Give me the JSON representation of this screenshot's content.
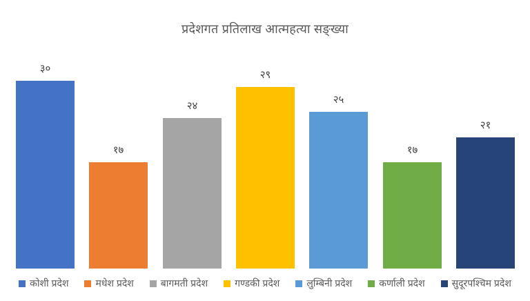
{
  "chart_data": {
    "type": "bar",
    "title": "प्रदेशगत प्रतिलाख आत्महत्या सङ्ख्या",
    "categories": [
      "कोशी प्रदेश",
      "मधेश प्रदेश",
      "बागमती प्रदेश",
      "गण्डकी प्रदेश",
      "लुम्बिनी प्रदेश",
      "कर्णाली प्रदेश",
      "सुदूरपश्चिम प्रदेश"
    ],
    "values": [
      30,
      17,
      24,
      29,
      25,
      17,
      21
    ],
    "value_labels": [
      "३०",
      "१७",
      "२४",
      "२९",
      "२५",
      "१७",
      "२१"
    ],
    "series_colors": [
      "#4472C4",
      "#ED7D31",
      "#A5A5A5",
      "#FFC000",
      "#5B9BD5",
      "#70AD47",
      "#264478"
    ],
    "xlabel": "",
    "ylabel": "",
    "ylim": [
      0,
      33
    ],
    "grid": false,
    "axes_visible": false,
    "legend_position": "bottom",
    "title_color": "#595959",
    "data_label_color": "#404040",
    "legend_text_color": "#595959",
    "background_color": "#FFFFFF"
  }
}
